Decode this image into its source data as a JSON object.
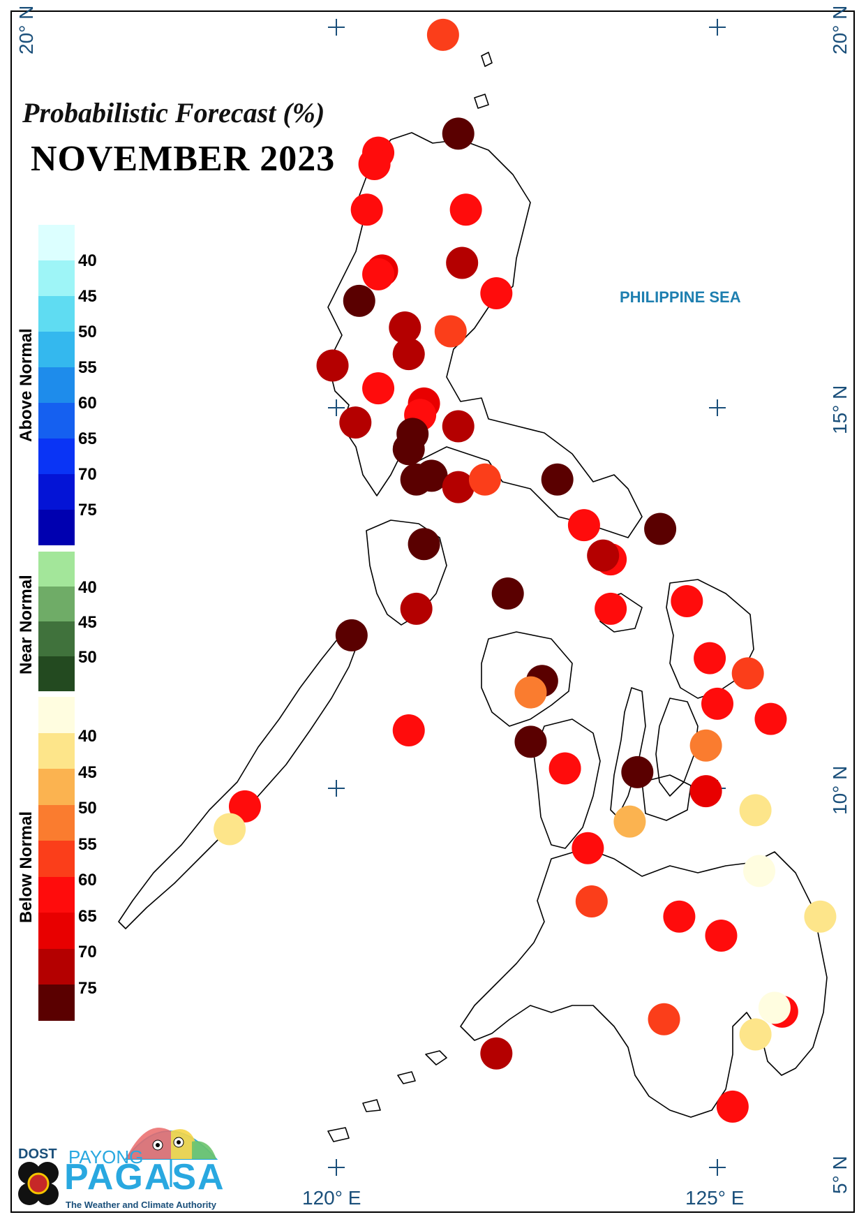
{
  "title": {
    "line1": "Probabilistic Forecast (%)",
    "line2": "NOVEMBER 2023"
  },
  "sea_label": "PHILIPPINE SEA",
  "coordinates": {
    "top_left": "20° N",
    "top_right": "20° N",
    "right_mid": "15° N",
    "right_lower": "10° N",
    "right_bottom": "5° N",
    "bottom_120": "120° E",
    "bottom_125": "125° E"
  },
  "legend": {
    "above_normal": {
      "label": "Above Normal",
      "ticks": [
        "40",
        "45",
        "50",
        "55",
        "60",
        "65",
        "70",
        "75"
      ],
      "colors": [
        "#dcffff",
        "#9ef5f7",
        "#5fdcf2",
        "#34b8ee",
        "#1e8ceb",
        "#1560f0",
        "#0a34f5",
        "#0414d6",
        "#0000b0"
      ]
    },
    "near_normal": {
      "label": "Near Normal",
      "ticks": [
        "40",
        "45",
        "50"
      ],
      "colors": [
        "#a3e69a",
        "#6fac67",
        "#40723c",
        "#234a20"
      ]
    },
    "below_normal": {
      "label": "Below Normal",
      "ticks": [
        "40",
        "45",
        "50",
        "55",
        "60",
        "65",
        "70",
        "75"
      ],
      "colors": [
        "#fffde0",
        "#fde58a",
        "#fbb350",
        "#fa7c2f",
        "#fb3e1a",
        "#ff0c0c",
        "#e80000",
        "#b40000",
        "#5a0000"
      ]
    }
  },
  "logo": {
    "dost": "DOST",
    "payong": "PAYONG",
    "pagasa": "PAGASA",
    "tagline": "The Weather and Climate Authority"
  },
  "stations": [
    {
      "lon": 121.4,
      "lat": 19.9,
      "color": "#fb3e1a",
      "class": "60"
    },
    {
      "lon": 121.6,
      "lat": 18.6,
      "color": "#5a0000",
      "class": "75"
    },
    {
      "lon": 120.55,
      "lat": 18.35,
      "color": "#ff0c0c",
      "class": "65"
    },
    {
      "lon": 120.5,
      "lat": 18.2,
      "color": "#ff0c0c",
      "class": "65"
    },
    {
      "lon": 120.4,
      "lat": 17.6,
      "color": "#ff0c0c",
      "class": "65"
    },
    {
      "lon": 121.7,
      "lat": 17.6,
      "color": "#ff0c0c",
      "class": "65"
    },
    {
      "lon": 121.65,
      "lat": 16.9,
      "color": "#b40000",
      "class": "70"
    },
    {
      "lon": 120.6,
      "lat": 16.8,
      "color": "#e80000",
      "class": "70"
    },
    {
      "lon": 120.55,
      "lat": 16.75,
      "color": "#ff0c0c",
      "class": "65"
    },
    {
      "lon": 122.1,
      "lat": 16.5,
      "color": "#ff0c0c",
      "class": "65"
    },
    {
      "lon": 120.3,
      "lat": 16.4,
      "color": "#5a0000",
      "class": "75"
    },
    {
      "lon": 120.9,
      "lat": 16.05,
      "color": "#b40000",
      "class": "70"
    },
    {
      "lon": 121.5,
      "lat": 16.0,
      "color": "#fb3e1a",
      "class": "60"
    },
    {
      "lon": 120.95,
      "lat": 15.7,
      "color": "#b40000",
      "class": "70"
    },
    {
      "lon": 119.95,
      "lat": 15.55,
      "color": "#b40000",
      "class": "70"
    },
    {
      "lon": 120.55,
      "lat": 15.25,
      "color": "#ff0c0c",
      "class": "65"
    },
    {
      "lon": 121.15,
      "lat": 15.05,
      "color": "#e80000",
      "class": "70"
    },
    {
      "lon": 121.1,
      "lat": 14.9,
      "color": "#ff0c0c",
      "class": "65"
    },
    {
      "lon": 120.25,
      "lat": 14.8,
      "color": "#b40000",
      "class": "70"
    },
    {
      "lon": 121.6,
      "lat": 14.75,
      "color": "#b40000",
      "class": "70"
    },
    {
      "lon": 121.0,
      "lat": 14.65,
      "color": "#5a0000",
      "class": "75"
    },
    {
      "lon": 120.95,
      "lat": 14.45,
      "color": "#5a0000",
      "class": "75"
    },
    {
      "lon": 121.25,
      "lat": 14.1,
      "color": "#5a0000",
      "class": "75"
    },
    {
      "lon": 121.05,
      "lat": 14.05,
      "color": "#5a0000",
      "class": "75"
    },
    {
      "lon": 121.6,
      "lat": 13.95,
      "color": "#b40000",
      "class": "70"
    },
    {
      "lon": 121.95,
      "lat": 14.05,
      "color": "#fb3e1a",
      "class": "60"
    },
    {
      "lon": 122.9,
      "lat": 14.05,
      "color": "#5a0000",
      "class": "75"
    },
    {
      "lon": 123.25,
      "lat": 13.45,
      "color": "#ff0c0c",
      "class": "65"
    },
    {
      "lon": 124.25,
      "lat": 13.4,
      "color": "#5a0000",
      "class": "75"
    },
    {
      "lon": 121.15,
      "lat": 13.2,
      "color": "#5a0000",
      "class": "75"
    },
    {
      "lon": 123.6,
      "lat": 13.0,
      "color": "#ff0c0c",
      "class": "65"
    },
    {
      "lon": 123.5,
      "lat": 13.05,
      "color": "#b40000",
      "class": "70"
    },
    {
      "lon": 122.25,
      "lat": 12.55,
      "color": "#5a0000",
      "class": "75"
    },
    {
      "lon": 123.6,
      "lat": 12.35,
      "color": "#ff0c0c",
      "class": "65"
    },
    {
      "lon": 124.6,
      "lat": 12.45,
      "color": "#ff0c0c",
      "class": "65"
    },
    {
      "lon": 121.05,
      "lat": 12.35,
      "color": "#b40000",
      "class": "70"
    },
    {
      "lon": 120.2,
      "lat": 12.0,
      "color": "#5a0000",
      "class": "75"
    },
    {
      "lon": 124.9,
      "lat": 11.7,
      "color": "#ff0c0c",
      "class": "65"
    },
    {
      "lon": 125.4,
      "lat": 11.5,
      "color": "#fb3e1a",
      "class": "60"
    },
    {
      "lon": 122.7,
      "lat": 11.4,
      "color": "#5a0000",
      "class": "75"
    },
    {
      "lon": 122.55,
      "lat": 11.25,
      "color": "#fa7c2f",
      "class": "55"
    },
    {
      "lon": 125.0,
      "lat": 11.1,
      "color": "#ff0c0c",
      "class": "65"
    },
    {
      "lon": 125.7,
      "lat": 10.9,
      "color": "#ff0c0c",
      "class": "65"
    },
    {
      "lon": 120.95,
      "lat": 10.75,
      "color": "#ff0c0c",
      "class": "65"
    },
    {
      "lon": 122.55,
      "lat": 10.6,
      "color": "#5a0000",
      "class": "75"
    },
    {
      "lon": 124.85,
      "lat": 10.55,
      "color": "#fa7c2f",
      "class": "55"
    },
    {
      "lon": 123.0,
      "lat": 10.25,
      "color": "#ff0c0c",
      "class": "65"
    },
    {
      "lon": 123.95,
      "lat": 10.2,
      "color": "#5a0000",
      "class": "75"
    },
    {
      "lon": 124.85,
      "lat": 9.95,
      "color": "#e80000",
      "class": "70"
    },
    {
      "lon": 118.8,
      "lat": 9.75,
      "color": "#ff0c0c",
      "class": "65"
    },
    {
      "lon": 125.5,
      "lat": 9.7,
      "color": "#fde58a",
      "class": "45"
    },
    {
      "lon": 123.85,
      "lat": 9.55,
      "color": "#fbb350",
      "class": "50"
    },
    {
      "lon": 118.6,
      "lat": 9.45,
      "color": "#fde58a",
      "class": "45"
    },
    {
      "lon": 123.3,
      "lat": 9.2,
      "color": "#ff0c0c",
      "class": "65"
    },
    {
      "lon": 125.55,
      "lat": 8.9,
      "color": "#fffde0",
      "class": "40"
    },
    {
      "lon": 123.35,
      "lat": 8.5,
      "color": "#fb3e1a",
      "class": "60"
    },
    {
      "lon": 124.5,
      "lat": 8.3,
      "color": "#ff0c0c",
      "class": "65"
    },
    {
      "lon": 126.35,
      "lat": 8.3,
      "color": "#fde58a",
      "class": "45"
    },
    {
      "lon": 125.05,
      "lat": 8.05,
      "color": "#ff0c0c",
      "class": "65"
    },
    {
      "lon": 125.85,
      "lat": 7.05,
      "color": "#ff0c0c",
      "class": "65"
    },
    {
      "lon": 125.75,
      "lat": 7.1,
      "color": "#fffde0",
      "class": "40"
    },
    {
      "lon": 124.3,
      "lat": 6.95,
      "color": "#fb3e1a",
      "class": "60"
    },
    {
      "lon": 125.5,
      "lat": 6.75,
      "color": "#fde58a",
      "class": "45"
    },
    {
      "lon": 122.1,
      "lat": 6.5,
      "color": "#b40000",
      "class": "70"
    },
    {
      "lon": 125.2,
      "lat": 5.8,
      "color": "#ff0c0c",
      "class": "65"
    }
  ]
}
